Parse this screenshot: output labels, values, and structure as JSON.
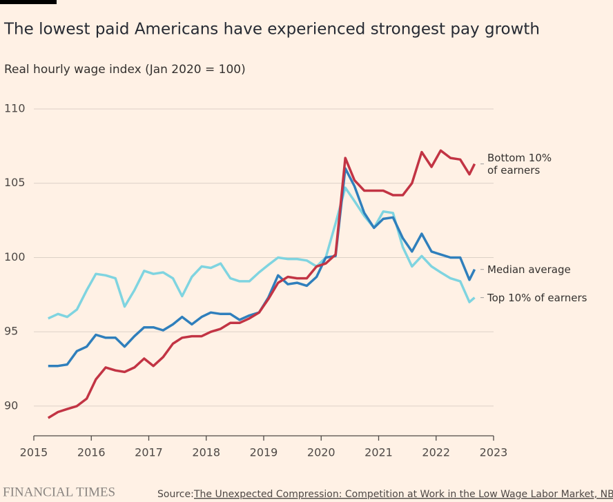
{
  "chart_data": {
    "type": "line",
    "title": "The lowest paid Americans have experienced strongest pay growth",
    "subtitle": "Real hourly wage index (Jan 2020 = 100)",
    "source_label": "Source:",
    "source_text": "The Unexpected Compression: Competition at Work in the Low Wage Labor Market, NBER",
    "brand": "FINANCIAL TIMES",
    "xlim": [
      2015,
      2023
    ],
    "xticks": [
      2015,
      2016,
      2017,
      2018,
      2019,
      2020,
      2021,
      2022,
      2023
    ],
    "ylim": [
      88,
      110
    ],
    "yticks": [
      90,
      95,
      100,
      105,
      110
    ],
    "grid": true,
    "x": [
      2015.25,
      2015.42,
      2015.58,
      2015.75,
      2015.92,
      2016.08,
      2016.25,
      2016.42,
      2016.58,
      2016.75,
      2016.92,
      2017.08,
      2017.25,
      2017.42,
      2017.58,
      2017.75,
      2017.92,
      2018.08,
      2018.25,
      2018.42,
      2018.58,
      2018.75,
      2018.92,
      2019.08,
      2019.25,
      2019.42,
      2019.58,
      2019.75,
      2019.92,
      2020.08,
      2020.25,
      2020.42,
      2020.58,
      2020.75,
      2020.92,
      2021.08,
      2021.25,
      2021.42,
      2021.58,
      2021.75,
      2021.92,
      2022.08,
      2022.25,
      2022.42,
      2022.58,
      2022.67
    ],
    "series": [
      {
        "name": "Top 10% of earners",
        "color": "#7fd4e0",
        "values": [
          95.9,
          96.2,
          96.0,
          96.5,
          97.8,
          98.9,
          98.8,
          98.6,
          96.7,
          97.8,
          99.1,
          98.9,
          99.0,
          98.6,
          97.4,
          98.7,
          99.4,
          99.3,
          99.6,
          98.6,
          98.4,
          98.4,
          99.0,
          99.5,
          100.0,
          99.9,
          99.9,
          99.8,
          99.4,
          100.0,
          102.3,
          104.7,
          103.8,
          102.8,
          102.0,
          103.1,
          103.0,
          100.7,
          99.4,
          100.1,
          99.4,
          99.0,
          98.6,
          98.4,
          97.0,
          97.3
        ]
      },
      {
        "name": "Median average",
        "color": "#2f7fbc",
        "values": [
          92.7,
          92.7,
          92.8,
          93.7,
          94.0,
          94.8,
          94.6,
          94.6,
          94.0,
          94.7,
          95.3,
          95.3,
          95.1,
          95.5,
          96.0,
          95.5,
          96.0,
          96.3,
          96.2,
          96.2,
          95.8,
          96.1,
          96.3,
          97.3,
          98.8,
          98.2,
          98.3,
          98.1,
          98.7,
          100.0,
          100.1,
          106.0,
          104.8,
          103.0,
          102.0,
          102.6,
          102.7,
          101.3,
          100.4,
          101.6,
          100.4,
          100.2,
          100.0,
          100.0,
          98.5,
          99.2
        ]
      },
      {
        "name": "Bottom 10% of earners",
        "color": "#c23444",
        "values": [
          89.2,
          89.6,
          89.8,
          90.0,
          90.5,
          91.8,
          92.6,
          92.4,
          92.3,
          92.6,
          93.2,
          92.7,
          93.3,
          94.2,
          94.6,
          94.7,
          94.7,
          95.0,
          95.2,
          95.6,
          95.6,
          95.9,
          96.3,
          97.2,
          98.3,
          98.7,
          98.6,
          98.6,
          99.4,
          99.6,
          100.2,
          106.7,
          105.2,
          104.5,
          104.5,
          104.5,
          104.2,
          104.2,
          105.0,
          107.1,
          106.1,
          107.2,
          106.7,
          106.6,
          105.6,
          106.3
        ]
      }
    ]
  }
}
